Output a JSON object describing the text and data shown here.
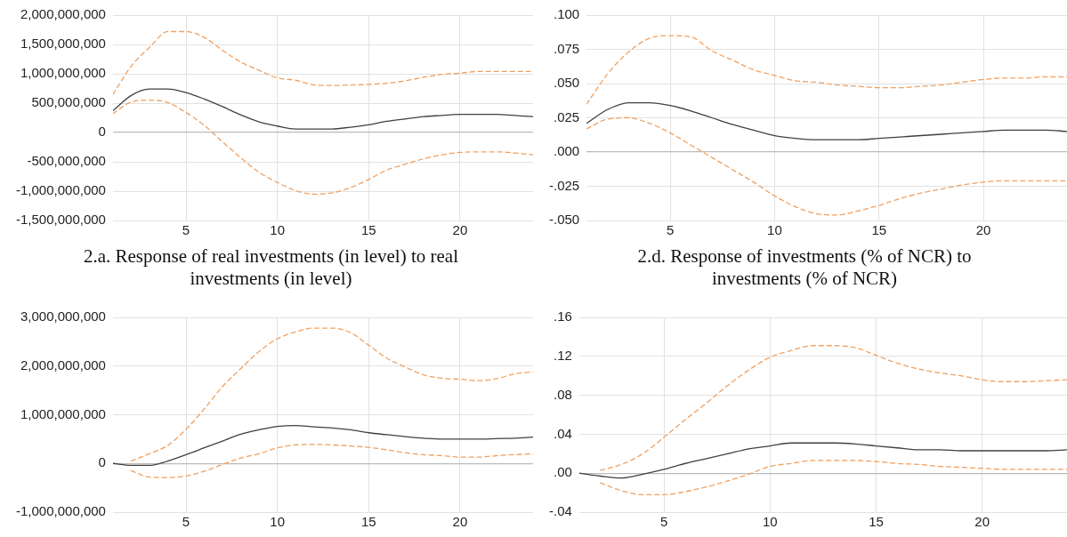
{
  "chart_data": [
    {
      "type": "line",
      "title": "2.a. Response of real investments (in level) to real investments (in level)",
      "x": [
        1,
        2,
        3,
        4,
        5,
        6,
        7,
        8,
        9,
        10,
        11,
        12,
        13,
        14,
        15,
        16,
        17,
        18,
        19,
        20,
        21,
        22,
        23,
        24
      ],
      "xlim": [
        1,
        24
      ],
      "xticks": [
        5,
        10,
        15,
        20
      ],
      "ylim": [
        -1500000000,
        2000000000
      ],
      "yticks": [
        {
          "value": -1500000000,
          "label": "-1,500,000,000"
        },
        {
          "value": -1000000000,
          "label": "-1,000,000,000"
        },
        {
          "value": -500000000,
          "label": "-500,000,000"
        },
        {
          "value": 0,
          "label": "0"
        },
        {
          "value": 500000000,
          "label": "500,000,000"
        },
        {
          "value": 1000000000,
          "label": "1,000,000,000"
        },
        {
          "value": 1500000000,
          "label": "1,500,000,000"
        },
        {
          "value": 2000000000,
          "label": "2,000,000,000"
        }
      ],
      "grid": true,
      "marker": "none",
      "series": [
        {
          "color": "#404040",
          "line_style": "solid",
          "values": [
            370000000,
            630000000,
            740000000,
            740000000,
            680000000,
            570000000,
            440000000,
            300000000,
            180000000,
            110000000,
            60000000,
            60000000,
            60000000,
            90000000,
            130000000,
            190000000,
            230000000,
            270000000,
            290000000,
            310000000,
            310000000,
            310000000,
            290000000,
            270000000
          ]
        },
        {
          "color": "#f0a060",
          "line_style": "dashed",
          "values": [
            650000000,
            1130000000,
            1450000000,
            1720000000,
            1720000000,
            1620000000,
            1400000000,
            1200000000,
            1060000000,
            930000000,
            890000000,
            810000000,
            800000000,
            810000000,
            820000000,
            840000000,
            880000000,
            940000000,
            990000000,
            1010000000,
            1040000000,
            1040000000,
            1040000000,
            1040000000
          ]
        },
        {
          "color": "#f0a060",
          "line_style": "dashed",
          "values": [
            320000000,
            520000000,
            550000000,
            510000000,
            340000000,
            120000000,
            -160000000,
            -430000000,
            -680000000,
            -850000000,
            -990000000,
            -1050000000,
            -1030000000,
            -940000000,
            -800000000,
            -640000000,
            -540000000,
            -450000000,
            -380000000,
            -340000000,
            -330000000,
            -330000000,
            -350000000,
            -380000000
          ]
        }
      ]
    },
    {
      "type": "line",
      "title": "2.d. Response of investments (% of NCR) to investments (% of NCR)",
      "x": [
        1,
        2,
        3,
        4,
        5,
        6,
        7,
        8,
        9,
        10,
        11,
        12,
        13,
        14,
        15,
        16,
        17,
        18,
        19,
        20,
        21,
        22,
        23,
        24
      ],
      "xlim": [
        1,
        24
      ],
      "xticks": [
        5,
        10,
        15,
        20
      ],
      "ylim": [
        -0.05,
        0.1
      ],
      "yticks": [
        {
          "value": -0.05,
          "label": "-.050"
        },
        {
          "value": -0.025,
          "label": "-.025"
        },
        {
          "value": 0,
          "label": ".000"
        },
        {
          "value": 0.025,
          "label": ".025"
        },
        {
          "value": 0.05,
          "label": ".050"
        },
        {
          "value": 0.075,
          "label": ".075"
        },
        {
          "value": 0.1,
          "label": ".100"
        }
      ],
      "grid": true,
      "marker": "none",
      "series": [
        {
          "color": "#404040",
          "line_style": "solid",
          "values": [
            0.021,
            0.031,
            0.036,
            0.036,
            0.034,
            0.03,
            0.025,
            0.02,
            0.016,
            0.012,
            0.01,
            0.009,
            0.009,
            0.009,
            0.01,
            0.011,
            0.012,
            0.013,
            0.014,
            0.015,
            0.016,
            0.016,
            0.016,
            0.015
          ]
        },
        {
          "color": "#f0a060",
          "line_style": "dashed",
          "values": [
            0.035,
            0.057,
            0.073,
            0.083,
            0.085,
            0.084,
            0.074,
            0.067,
            0.06,
            0.056,
            0.052,
            0.051,
            0.049,
            0.048,
            0.047,
            0.047,
            0.048,
            0.049,
            0.051,
            0.053,
            0.054,
            0.054,
            0.055,
            0.055
          ]
        },
        {
          "color": "#f0a060",
          "line_style": "dashed",
          "values": [
            0.017,
            0.024,
            0.025,
            0.021,
            0.014,
            0.005,
            -0.004,
            -0.013,
            -0.022,
            -0.032,
            -0.04,
            -0.045,
            -0.046,
            -0.043,
            -0.039,
            -0.034,
            -0.03,
            -0.027,
            -0.024,
            -0.022,
            -0.021,
            -0.021,
            -0.021,
            -0.021
          ]
        }
      ]
    },
    {
      "type": "line",
      "x": [
        1,
        2,
        3,
        4,
        5,
        6,
        7,
        8,
        9,
        10,
        11,
        12,
        13,
        14,
        15,
        16,
        17,
        18,
        19,
        20,
        21,
        22,
        23,
        24
      ],
      "xlim": [
        1,
        24
      ],
      "xticks": [
        5,
        10,
        15,
        20
      ],
      "ylim": [
        -1000000000,
        3000000000
      ],
      "yticks": [
        {
          "value": -1000000000,
          "label": "-1,000,000,000"
        },
        {
          "value": 0,
          "label": "0"
        },
        {
          "value": 1000000000,
          "label": "1,000,000,000"
        },
        {
          "value": 2000000000,
          "label": "2,000,000,000"
        },
        {
          "value": 3000000000,
          "label": "3,000,000,000"
        }
      ],
      "grid": true,
      "marker": "none",
      "series": [
        {
          "color": "#404040",
          "line_style": "solid",
          "values": [
            0,
            -40000000,
            -40000000,
            50000000,
            180000000,
            320000000,
            460000000,
            600000000,
            690000000,
            760000000,
            780000000,
            750000000,
            730000000,
            690000000,
            630000000,
            590000000,
            550000000,
            520000000,
            500000000,
            500000000,
            500000000,
            510000000,
            520000000,
            540000000
          ]
        },
        {
          "color": "#f0a060",
          "line_style": "dashed",
          "values": [
            null,
            50000000,
            200000000,
            370000000,
            700000000,
            1120000000,
            1580000000,
            1950000000,
            2300000000,
            2560000000,
            2700000000,
            2780000000,
            2780000000,
            2690000000,
            2430000000,
            2160000000,
            1980000000,
            1820000000,
            1750000000,
            1730000000,
            1700000000,
            1740000000,
            1840000000,
            1880000000
          ]
        },
        {
          "color": "#f0a060",
          "line_style": "dashed",
          "values": [
            null,
            -150000000,
            -280000000,
            -290000000,
            -260000000,
            -160000000,
            -20000000,
            110000000,
            200000000,
            320000000,
            380000000,
            390000000,
            380000000,
            360000000,
            330000000,
            280000000,
            220000000,
            180000000,
            160000000,
            130000000,
            130000000,
            160000000,
            180000000,
            200000000
          ]
        }
      ]
    },
    {
      "type": "line",
      "x": [
        1,
        2,
        3,
        4,
        5,
        6,
        7,
        8,
        9,
        10,
        11,
        12,
        13,
        14,
        15,
        16,
        17,
        18,
        19,
        20,
        21,
        22,
        23,
        24
      ],
      "xlim": [
        1,
        24
      ],
      "xticks": [
        5,
        10,
        15,
        20
      ],
      "ylim": [
        -0.04,
        0.16
      ],
      "yticks": [
        {
          "value": -0.04,
          "label": "-.04"
        },
        {
          "value": 0,
          "label": ".00"
        },
        {
          "value": 0.04,
          "label": ".04"
        },
        {
          "value": 0.08,
          "label": ".08"
        },
        {
          "value": 0.12,
          "label": ".12"
        },
        {
          "value": 0.16,
          "label": ".16"
        }
      ],
      "grid": true,
      "marker": "none",
      "series": [
        {
          "color": "#404040",
          "line_style": "solid",
          "values": [
            0,
            -0.003,
            -0.005,
            -0.001,
            0.004,
            0.01,
            0.015,
            0.02,
            0.025,
            0.028,
            0.031,
            0.031,
            0.031,
            0.03,
            0.028,
            0.026,
            0.024,
            0.024,
            0.023,
            0.023,
            0.023,
            0.023,
            0.023,
            0.024
          ]
        },
        {
          "color": "#f0a060",
          "line_style": "dashed",
          "values": [
            null,
            0.003,
            0.009,
            0.02,
            0.037,
            0.055,
            0.072,
            0.09,
            0.106,
            0.119,
            0.126,
            0.131,
            0.131,
            0.129,
            0.121,
            0.113,
            0.107,
            0.103,
            0.1,
            0.096,
            0.094,
            0.094,
            0.095,
            0.096
          ]
        },
        {
          "color": "#f0a060",
          "line_style": "dashed",
          "values": [
            null,
            -0.01,
            -0.018,
            -0.022,
            -0.022,
            -0.019,
            -0.014,
            -0.008,
            -0.001,
            0.007,
            0.01,
            0.013,
            0.013,
            0.013,
            0.012,
            0.01,
            0.009,
            0.007,
            0.006,
            0.005,
            0.004,
            0.004,
            0.004,
            0.004
          ]
        }
      ]
    }
  ]
}
